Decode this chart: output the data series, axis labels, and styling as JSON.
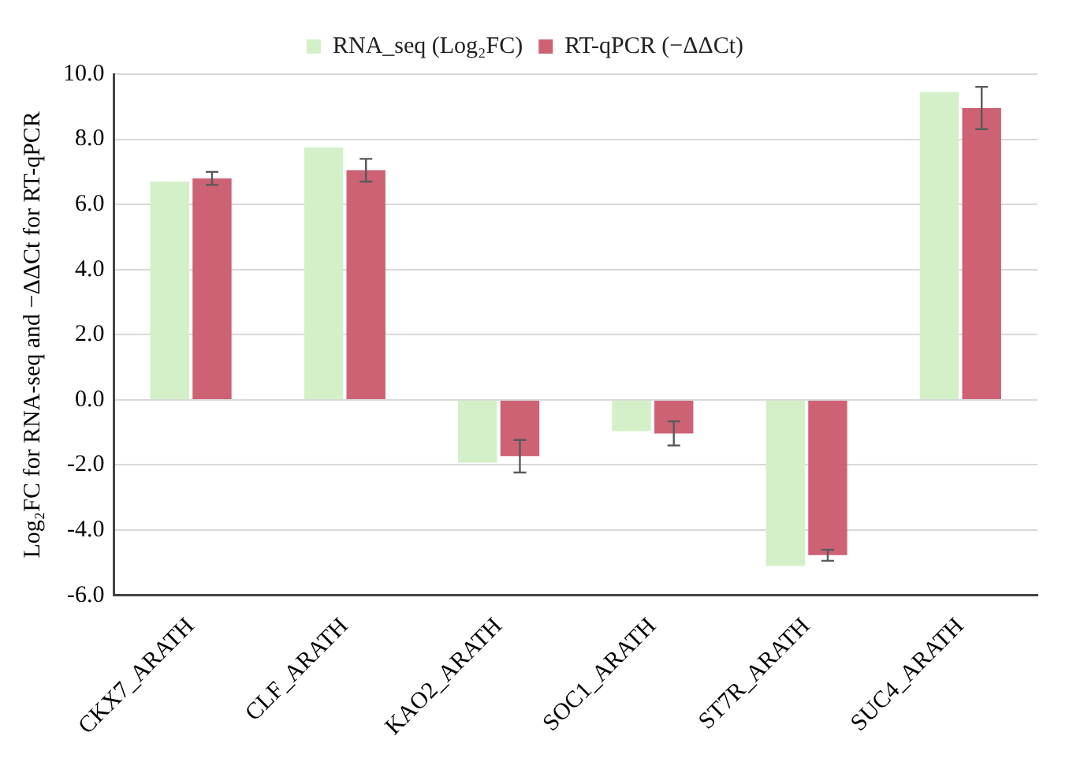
{
  "chart_data": {
    "type": "bar",
    "ylabel": "Log₂FC for RNA-seq and −ΔΔCt for RT-qPCR",
    "categories": [
      "CKX7_ARATH",
      "CLF_ARATH",
      "KAO2_ARATH",
      "SOC1_ARATH",
      "ST7R_ARATH",
      "SUC4_ARATH"
    ],
    "series": [
      {
        "name": "RNA_seq (Log₂FC)",
        "color": "#d3f0c8",
        "values": [
          6.7,
          7.75,
          -1.93,
          -0.96,
          -5.1,
          9.45
        ]
      },
      {
        "name": "RT-qPCR (−ΔΔCt)",
        "color": "#cd6275",
        "values": [
          6.8,
          7.05,
          -1.73,
          -1.03,
          -4.77,
          8.96
        ],
        "errors": [
          0.2,
          0.35,
          0.5,
          0.37,
          0.17,
          0.65
        ]
      }
    ],
    "ylim": [
      -6,
      10
    ],
    "yticks": [
      {
        "value": -6,
        "label": "-6.0"
      },
      {
        "value": -4,
        "label": "-4.0"
      },
      {
        "value": -2,
        "label": "-2.0"
      },
      {
        "value": 0,
        "label": "0.0"
      },
      {
        "value": 2,
        "label": "2.0"
      },
      {
        "value": 4,
        "label": "4.0"
      },
      {
        "value": 6,
        "label": "6.0"
      },
      {
        "value": 8,
        "label": "8.0"
      },
      {
        "value": 10,
        "label": "10.0"
      }
    ],
    "grid": "y",
    "legend": "top"
  }
}
